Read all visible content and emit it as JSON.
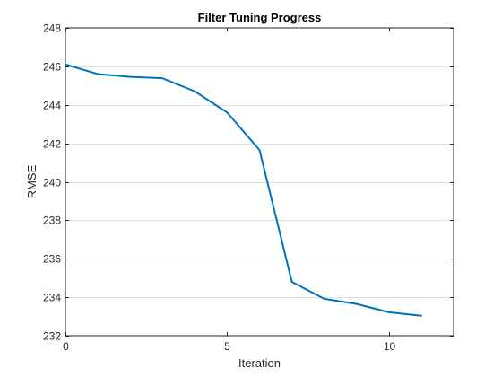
{
  "chart_data": {
    "type": "line",
    "title": "Filter Tuning Progress",
    "xlabel": "Iteration",
    "ylabel": "RMSE",
    "xlim": [
      0,
      12
    ],
    "ylim": [
      232,
      248
    ],
    "xticks": [
      0,
      5,
      10
    ],
    "xtick_labels": [
      "0",
      "5",
      "10"
    ],
    "yticks": [
      232,
      234,
      236,
      238,
      240,
      242,
      244,
      246,
      248
    ],
    "ytick_labels": [
      "232",
      "234",
      "236",
      "238",
      "240",
      "242",
      "244",
      "246",
      "248"
    ],
    "grid": "horizontal",
    "legend": "none",
    "series": [
      {
        "color": "#0072bd",
        "x": [
          0,
          1,
          2,
          3,
          4,
          5,
          6,
          7,
          8,
          9,
          10,
          11
        ],
        "y": [
          246.1,
          245.6,
          245.45,
          245.38,
          244.7,
          243.6,
          241.65,
          234.8,
          233.92,
          233.65,
          233.22,
          233.04
        ]
      }
    ]
  }
}
